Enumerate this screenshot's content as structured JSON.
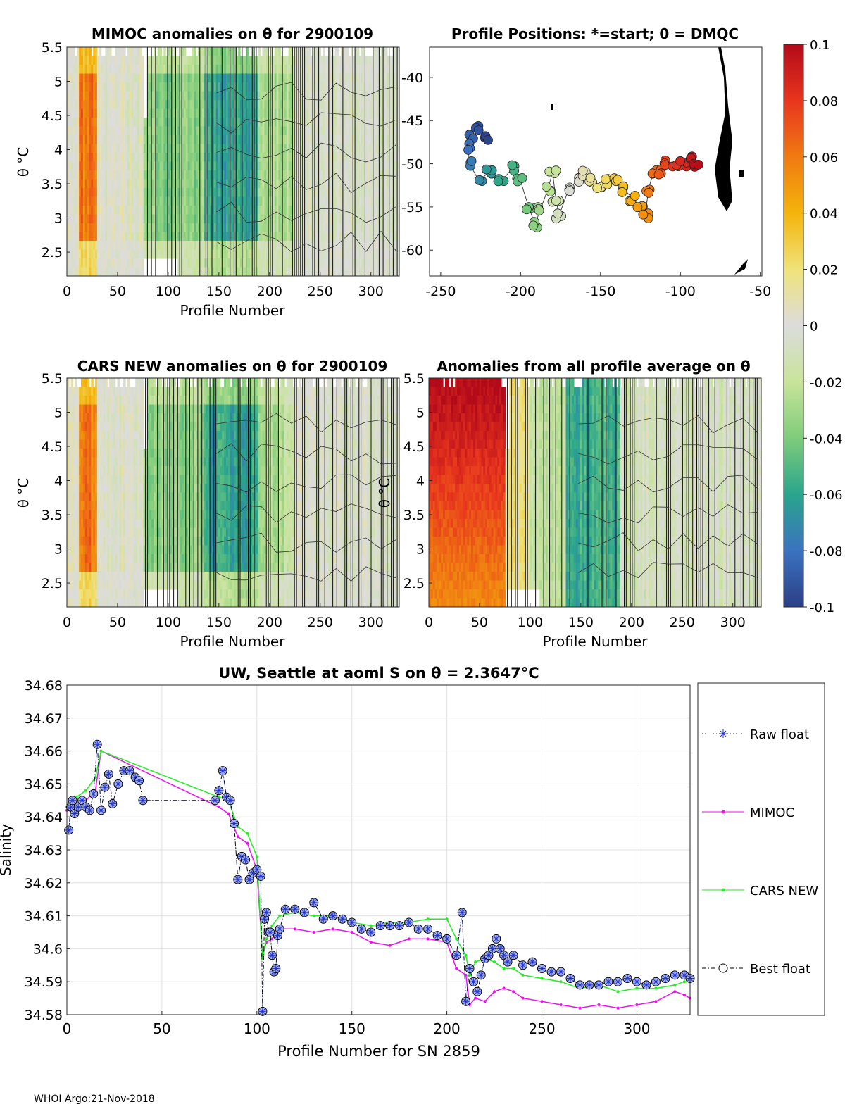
{
  "panels": {
    "mimoc": {
      "title": "MIMOC anomalies on θ  for 2900109",
      "xlabel": "Profile Number",
      "ylabel": "θ °C",
      "xticks": [
        0,
        50,
        100,
        150,
        200,
        250,
        300
      ],
      "yticks": [
        2.5,
        3,
        3.5,
        4,
        4.5,
        5,
        5.5
      ]
    },
    "positions": {
      "title": "Profile Positions: *=start; 0 = DMQC",
      "xticks": [
        -250,
        -200,
        -150,
        -100,
        -50
      ],
      "yticks": [
        -40,
        -45,
        -50,
        -55,
        -60
      ]
    },
    "cars": {
      "title": "CARS NEW anomalies on θ for 2900109",
      "xlabel": "Profile Number",
      "ylabel": "θ °C",
      "xticks": [
        0,
        50,
        100,
        150,
        200,
        250,
        300
      ],
      "yticks": [
        2.5,
        3,
        3.5,
        4,
        4.5,
        5,
        5.5
      ]
    },
    "allavg": {
      "title": "Anomalies from all profile average on θ",
      "xlabel": "Profile Number",
      "ylabel": "θ °C",
      "xticks": [
        0,
        50,
        100,
        150,
        200,
        250,
        300
      ],
      "yticks": [
        2.5,
        3,
        3.5,
        4,
        4.5,
        5,
        5.5
      ]
    }
  },
  "colorbar": {
    "ticks": [
      "0.1",
      "0.08",
      "0.06",
      "0.04",
      "0.02",
      "0",
      "-0.02",
      "-0.04",
      "-0.06",
      "-0.08",
      "-0.1"
    ]
  },
  "chart_data": {
    "type": "line",
    "title": "UW, Seattle at aoml S on θ = 2.3647°C",
    "xlabel": "Profile Number for SN 2859",
    "ylabel": "Salinity",
    "xlim": [
      0,
      328
    ],
    "ylim": [
      34.58,
      34.68
    ],
    "xticks": [
      0,
      50,
      100,
      150,
      200,
      250,
      300
    ],
    "yticks": [
      34.58,
      34.59,
      34.6,
      34.61,
      34.62,
      34.63,
      34.64,
      34.65,
      34.66,
      34.67,
      34.68
    ],
    "series": [
      {
        "name": "Raw float",
        "color": "#2233cc",
        "x": [
          1,
          2,
          3,
          4,
          6,
          8,
          10,
          12,
          14,
          16,
          18,
          20,
          22,
          24,
          27,
          30,
          33,
          36,
          38,
          40,
          78,
          80,
          82,
          84,
          86,
          88,
          90,
          92,
          94,
          96,
          98,
          100,
          102,
          103,
          104,
          105,
          106,
          107,
          108,
          109,
          110,
          111,
          112,
          115,
          120,
          125,
          130,
          135,
          140,
          145,
          150,
          155,
          160,
          165,
          170,
          175,
          180,
          185,
          190,
          195,
          200,
          205,
          208,
          210,
          212,
          214,
          216,
          218,
          220,
          222,
          224,
          226,
          228,
          230,
          232,
          235,
          240,
          245,
          250,
          255,
          260,
          265,
          270,
          275,
          280,
          285,
          290,
          295,
          300,
          305,
          310,
          315,
          320,
          325,
          328
        ],
        "y": [
          34.636,
          34.643,
          34.645,
          34.641,
          34.643,
          34.645,
          34.643,
          34.642,
          34.647,
          34.662,
          34.642,
          34.649,
          34.653,
          34.644,
          34.65,
          34.654,
          34.654,
          34.652,
          34.651,
          34.645,
          34.645,
          34.648,
          34.654,
          34.646,
          34.645,
          34.638,
          34.621,
          34.628,
          34.627,
          34.621,
          34.623,
          34.624,
          34.622,
          34.581,
          34.609,
          34.611,
          34.605,
          34.605,
          34.598,
          34.593,
          34.594,
          34.604,
          34.606,
          34.612,
          34.612,
          34.611,
          34.614,
          34.609,
          34.61,
          34.609,
          34.608,
          34.606,
          34.605,
          34.607,
          34.607,
          34.607,
          34.608,
          34.606,
          34.606,
          34.604,
          34.603,
          34.598,
          34.611,
          34.584,
          34.594,
          34.59,
          34.587,
          34.592,
          34.597,
          34.598,
          34.6,
          34.603,
          34.6,
          34.598,
          34.596,
          34.598,
          34.595,
          34.596,
          34.594,
          34.593,
          34.593,
          34.591,
          34.589,
          34.589,
          34.589,
          34.59,
          34.59,
          34.591,
          34.59,
          34.589,
          34.59,
          34.591,
          34.592,
          34.592,
          34.591
        ]
      },
      {
        "name": "MIMOC",
        "color": "#ee11ee",
        "x": [
          0,
          5,
          10,
          15,
          18,
          80,
          85,
          90,
          95,
          100,
          103,
          105,
          108,
          112,
          120,
          130,
          140,
          150,
          160,
          170,
          180,
          190,
          200,
          205,
          210,
          212,
          215,
          220,
          225,
          230,
          235,
          240,
          250,
          260,
          270,
          280,
          290,
          300,
          310,
          320,
          325,
          328
        ],
        "y": [
          34.642,
          34.644,
          34.645,
          34.648,
          34.66,
          34.643,
          34.641,
          34.634,
          34.632,
          34.624,
          34.598,
          34.602,
          34.603,
          34.606,
          34.606,
          34.605,
          34.606,
          34.605,
          34.602,
          34.601,
          34.603,
          34.603,
          34.602,
          34.594,
          34.592,
          34.583,
          34.585,
          34.584,
          34.587,
          34.588,
          34.587,
          34.585,
          34.584,
          34.583,
          34.582,
          34.583,
          34.582,
          34.583,
          34.584,
          34.587,
          34.586,
          34.585
        ]
      },
      {
        "name": "CARS NEW",
        "color": "#22ee22",
        "x": [
          0,
          5,
          10,
          15,
          18,
          80,
          85,
          90,
          95,
          100,
          103,
          105,
          108,
          112,
          120,
          130,
          140,
          150,
          160,
          170,
          180,
          190,
          200,
          205,
          210,
          212,
          215,
          220,
          225,
          230,
          235,
          240,
          250,
          260,
          270,
          280,
          290,
          300,
          310,
          320,
          325,
          328
        ],
        "y": [
          34.643,
          34.646,
          34.648,
          34.652,
          34.66,
          34.646,
          34.645,
          34.637,
          34.635,
          34.628,
          34.597,
          34.603,
          34.607,
          34.61,
          34.611,
          34.61,
          34.61,
          34.608,
          34.607,
          34.608,
          34.608,
          34.609,
          34.609,
          34.603,
          34.598,
          34.592,
          34.596,
          34.597,
          34.596,
          34.594,
          34.594,
          34.592,
          34.591,
          34.59,
          34.588,
          34.589,
          34.587,
          34.588,
          34.588,
          34.589,
          34.59,
          34.59
        ]
      },
      {
        "name": "Best float",
        "color": "#000000",
        "x": [
          1,
          2,
          3,
          4,
          6,
          8,
          10,
          12,
          14,
          16,
          18,
          20,
          22,
          24,
          27,
          30,
          33,
          36,
          38,
          40,
          78,
          80,
          82,
          84,
          86,
          88,
          90,
          92,
          94,
          96,
          98,
          100,
          102,
          103,
          104,
          105,
          106,
          107,
          108,
          109,
          110,
          111,
          112,
          115,
          120,
          125,
          130,
          135,
          140,
          145,
          150,
          155,
          160,
          165,
          170,
          175,
          180,
          185,
          190,
          195,
          200,
          205,
          208,
          210,
          212,
          214,
          216,
          218,
          220,
          222,
          224,
          226,
          228,
          230,
          232,
          235,
          240,
          245,
          250,
          255,
          260,
          265,
          270,
          275,
          280,
          285,
          290,
          295,
          300,
          305,
          310,
          315,
          320,
          325,
          328
        ],
        "y": [
          34.636,
          34.643,
          34.645,
          34.641,
          34.643,
          34.645,
          34.643,
          34.642,
          34.647,
          34.662,
          34.642,
          34.649,
          34.653,
          34.644,
          34.65,
          34.654,
          34.654,
          34.652,
          34.651,
          34.645,
          34.645,
          34.648,
          34.654,
          34.646,
          34.645,
          34.638,
          34.621,
          34.628,
          34.627,
          34.621,
          34.623,
          34.624,
          34.622,
          34.581,
          34.609,
          34.611,
          34.605,
          34.605,
          34.598,
          34.593,
          34.594,
          34.604,
          34.606,
          34.612,
          34.612,
          34.611,
          34.614,
          34.609,
          34.61,
          34.609,
          34.608,
          34.606,
          34.605,
          34.607,
          34.607,
          34.607,
          34.608,
          34.606,
          34.606,
          34.604,
          34.603,
          34.598,
          34.611,
          34.584,
          34.594,
          34.59,
          34.587,
          34.592,
          34.597,
          34.598,
          34.6,
          34.603,
          34.6,
          34.598,
          34.596,
          34.598,
          34.595,
          34.596,
          34.594,
          34.593,
          34.593,
          34.591,
          34.589,
          34.589,
          34.589,
          34.59,
          34.59,
          34.591,
          34.59,
          34.589,
          34.59,
          34.591,
          34.592,
          34.592,
          34.591
        ]
      }
    ]
  },
  "footer": "WHOI Argo:21-Nov-2018"
}
